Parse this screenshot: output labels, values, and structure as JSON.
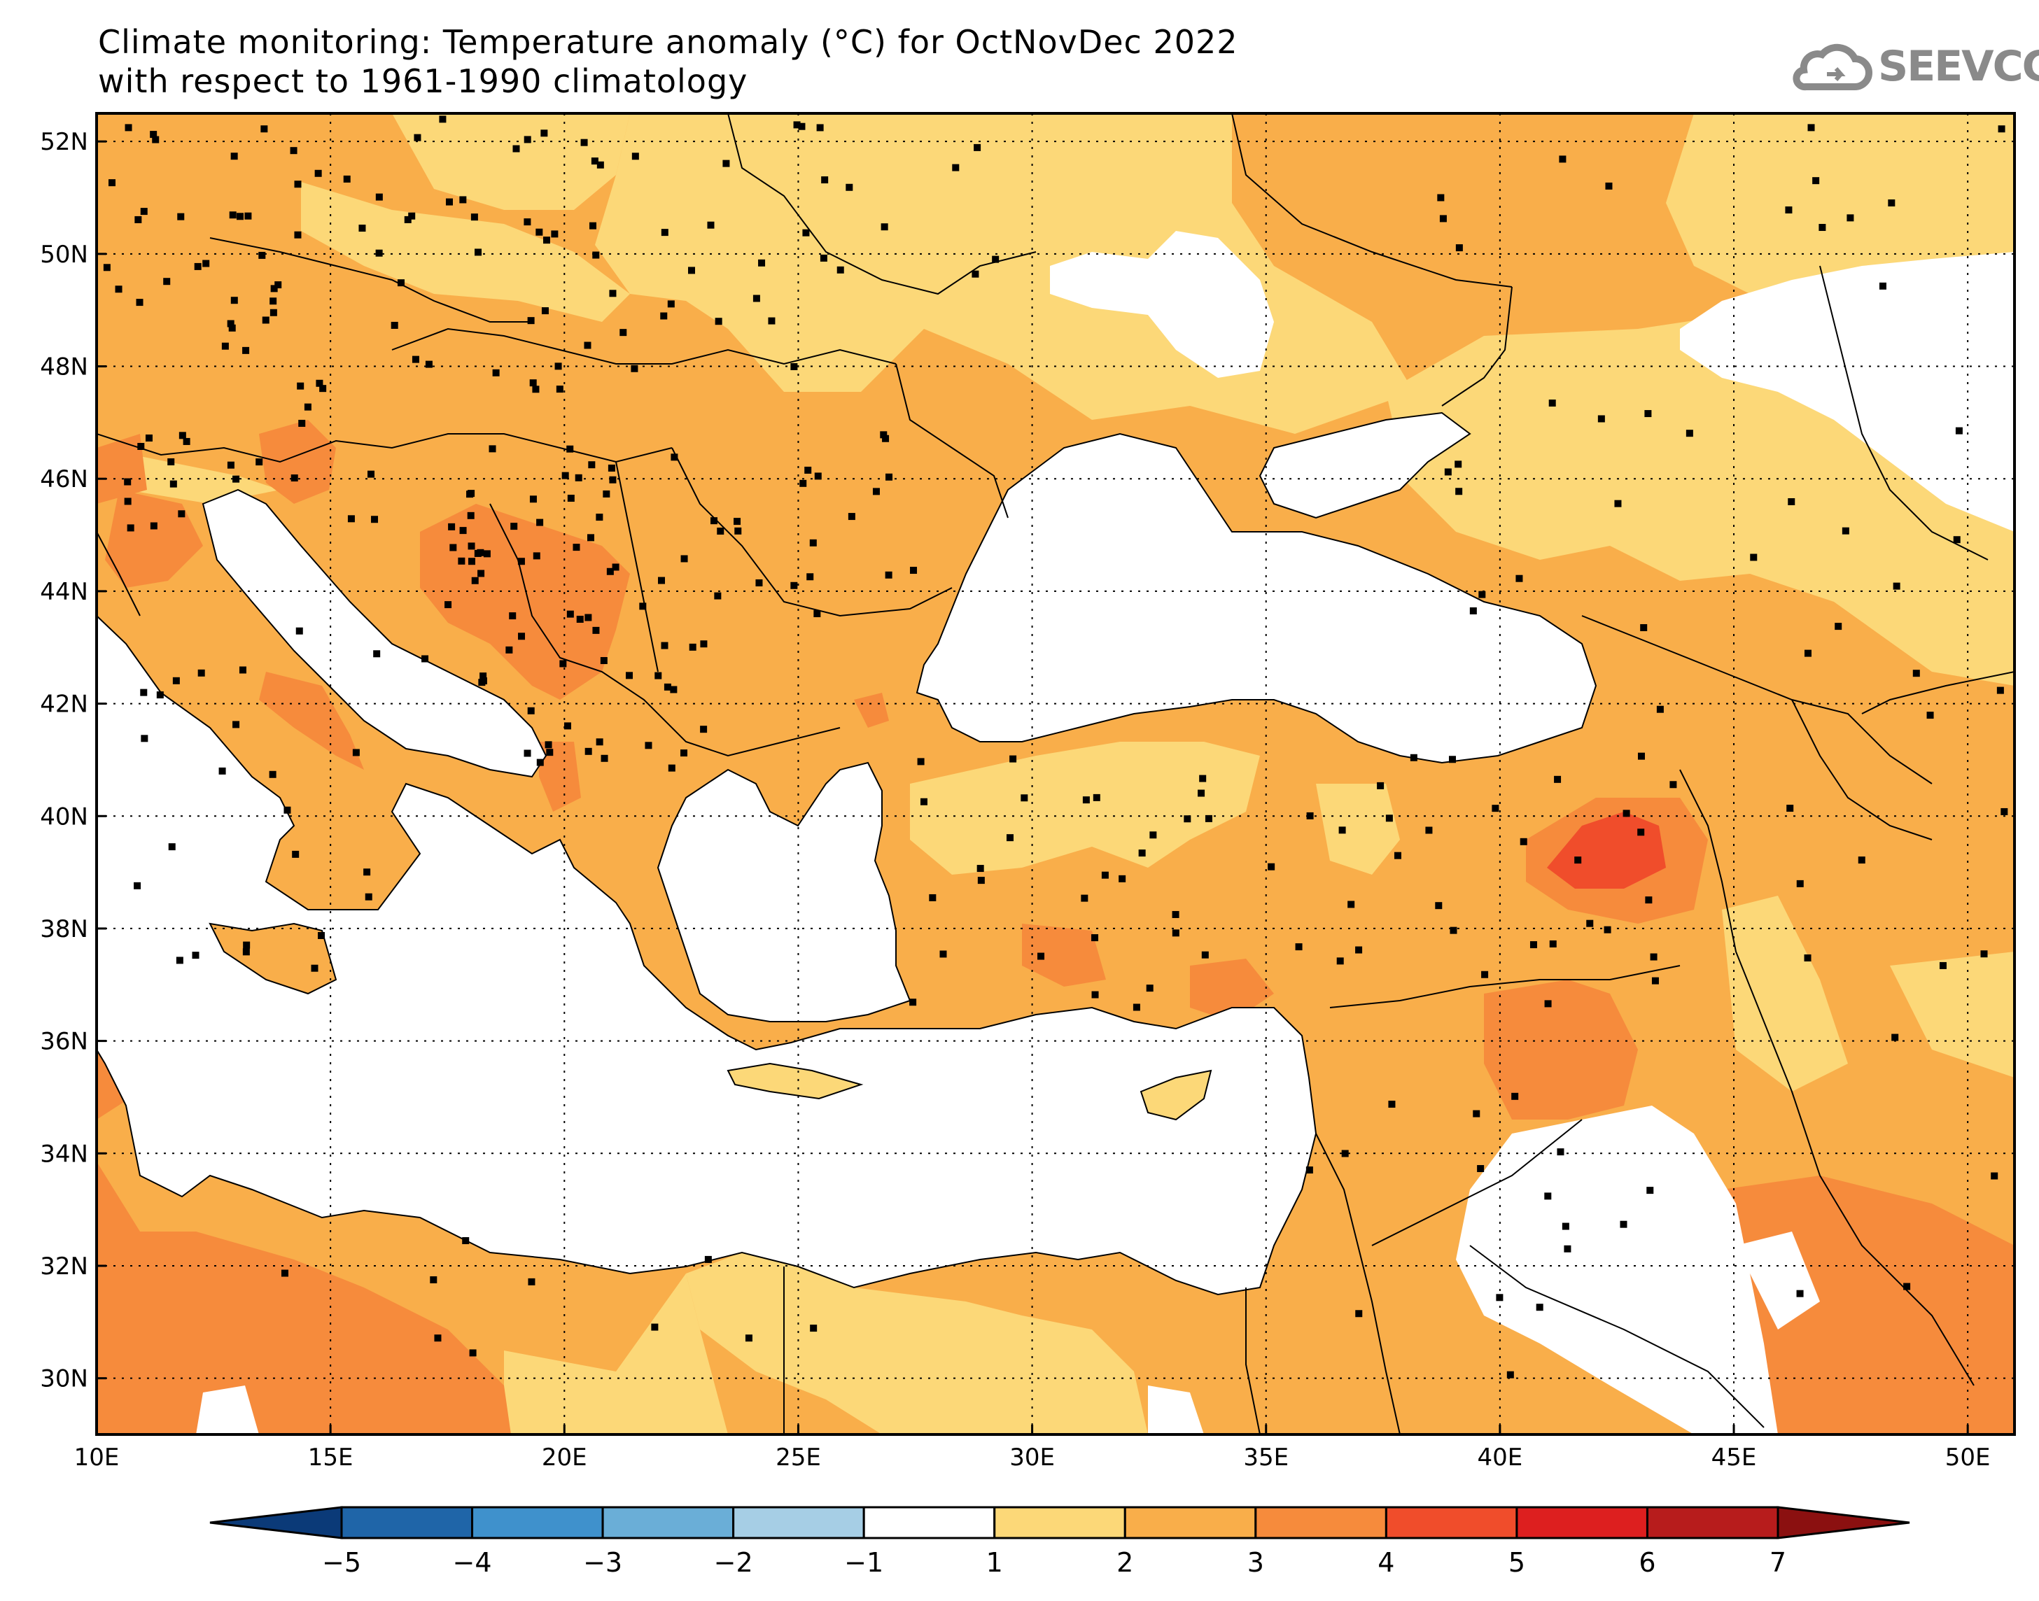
{
  "title": {
    "line1": "Climate monitoring: Temperature anomaly (°C) for OctNovDec 2022",
    "line2": "with respect to 1961-1990 climatology"
  },
  "logo": {
    "text": "SEEVCCC",
    "icon": "cloud-icon"
  },
  "map": {
    "lon_range": [
      10,
      51
    ],
    "lat_range": [
      29,
      52.5
    ],
    "lon_ticks": [
      "10E",
      "15E",
      "20E",
      "25E",
      "30E",
      "35E",
      "40E",
      "45E",
      "50E"
    ],
    "lat_ticks": [
      "52N",
      "50N",
      "48N",
      "46N",
      "44N",
      "42N",
      "40N",
      "38N",
      "36N",
      "34N",
      "32N",
      "30N"
    ],
    "dominant_anomaly_band": "2 to 3",
    "max_anomaly_region": "eastern Turkey (4 to 5)"
  },
  "colorbar": {
    "labels": [
      "-5",
      "-4",
      "-3",
      "-2",
      "-1",
      "1",
      "2",
      "3",
      "4",
      "5",
      "6",
      "7"
    ],
    "colors": [
      "#0b3a78",
      "#1f65a8",
      "#3f91cc",
      "#6aaed7",
      "#a6cee5",
      "#ffffff",
      "#fcd878",
      "#f9ae4a",
      "#f68b3c",
      "#f04d2b",
      "#dd1f1f",
      "#b71c1c",
      "#8b1010"
    ]
  },
  "colors": {
    "sea": "#ffffff",
    "band_1_2": "#fcd878",
    "band_2_3": "#f9ae4a",
    "band_3_4": "#f68b3c",
    "band_4_5": "#f04d2b",
    "coast": "#000000",
    "logo": "#8a8a8a"
  }
}
